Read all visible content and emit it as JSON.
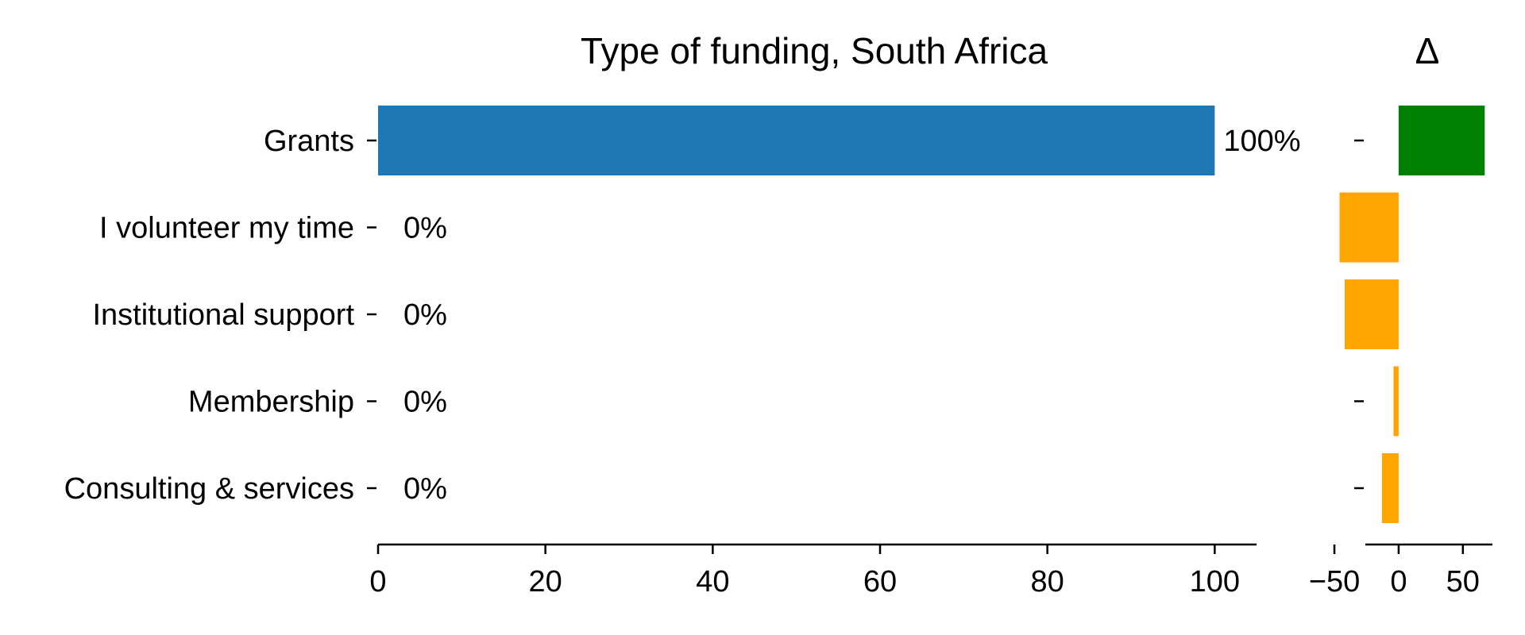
{
  "chart_data": [
    {
      "type": "bar",
      "orientation": "horizontal",
      "title": "Type of funding, South Africa",
      "categories": [
        "Grants",
        "I volunteer my time",
        "Institutional support",
        "Membership",
        "Consulting & services"
      ],
      "values": [
        100,
        0,
        0,
        0,
        0
      ],
      "value_labels": [
        "100%",
        "0%",
        "0%",
        "0%",
        "0%"
      ],
      "xlim": [
        0,
        105
      ],
      "xticks": [
        0,
        20,
        40,
        60,
        80,
        100
      ],
      "xtick_labels": [
        "0",
        "20",
        "40",
        "60",
        "80",
        "100"
      ],
      "xlabel": "",
      "ylabel": "",
      "grid": false,
      "bar_color": "#1f77b4"
    },
    {
      "type": "bar",
      "orientation": "horizontal",
      "title": "Δ",
      "categories": [
        "Grants",
        "I volunteer my time",
        "Institutional support",
        "Membership",
        "Consulting & services"
      ],
      "values": [
        67,
        -46,
        -42,
        -4,
        -13
      ],
      "xlim": [
        -63,
        73
      ],
      "xticks": [
        -50,
        0,
        50
      ],
      "xtick_labels": [
        "−50",
        "0",
        "50"
      ],
      "grid": false,
      "positive_color": "#008000",
      "negative_color": "#ffa500"
    }
  ]
}
